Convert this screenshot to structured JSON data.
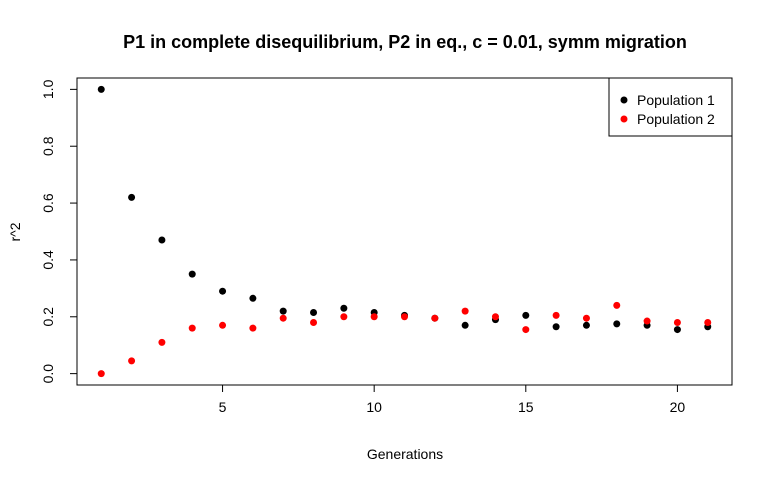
{
  "chart_data": {
    "type": "scatter",
    "title": "P1 in complete disequilibrium, P2 in eq., c = 0.01, symm migration",
    "xlabel": "Generations",
    "ylabel": "r^2",
    "xlim": [
      0.2,
      21.8
    ],
    "ylim": [
      -0.04,
      1.04
    ],
    "x_ticks": [
      5,
      10,
      15,
      20
    ],
    "x_tick_labels": [
      "5",
      "10",
      "15",
      "20"
    ],
    "y_ticks": [
      0.0,
      0.2,
      0.4,
      0.6,
      0.8,
      1.0
    ],
    "y_tick_labels": [
      "0.0",
      "0.2",
      "0.4",
      "0.6",
      "0.8",
      "1.0"
    ],
    "grid": false,
    "legend_position": "top-right",
    "series": [
      {
        "name": "Population 1",
        "color": "#000000",
        "x": [
          1,
          2,
          3,
          4,
          5,
          6,
          7,
          8,
          9,
          10,
          11,
          12,
          13,
          14,
          15,
          16,
          17,
          18,
          19,
          20,
          21
        ],
        "y": [
          1.0,
          0.62,
          0.47,
          0.35,
          0.29,
          0.265,
          0.22,
          0.215,
          0.23,
          0.215,
          0.205,
          0.195,
          0.17,
          0.19,
          0.205,
          0.165,
          0.17,
          0.175,
          0.17,
          0.155,
          0.165
        ]
      },
      {
        "name": "Population 2",
        "color": "#ff0000",
        "x": [
          1,
          2,
          3,
          4,
          5,
          6,
          7,
          8,
          9,
          10,
          11,
          12,
          13,
          14,
          15,
          16,
          17,
          18,
          19,
          20,
          21
        ],
        "y": [
          0.0,
          0.045,
          0.11,
          0.16,
          0.17,
          0.16,
          0.195,
          0.18,
          0.2,
          0.2,
          0.2,
          0.195,
          0.22,
          0.2,
          0.155,
          0.205,
          0.195,
          0.24,
          0.185,
          0.18,
          0.18
        ]
      }
    ]
  }
}
